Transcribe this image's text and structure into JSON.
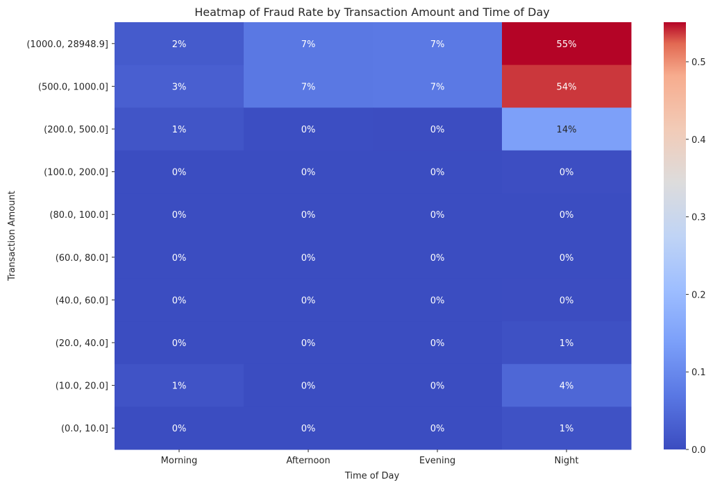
{
  "chart_data": {
    "type": "heatmap",
    "title": "Heatmap of Fraud Rate by Transaction Amount and Time of Day",
    "xlabel": "Time of Day",
    "ylabel": "Transaction Amount",
    "x_categories": [
      "Morning",
      "Afternoon",
      "Evening",
      "Night"
    ],
    "y_categories": [
      "(1000.0, 28948.9]",
      "(500.0, 1000.0]",
      "(200.0, 500.0]",
      "(100.0, 200.0]",
      "(80.0, 100.0]",
      "(60.0, 80.0]",
      "(40.0, 60.0]",
      "(20.0, 40.0]",
      "(10.0, 20.0]",
      "(0.0, 10.0]"
    ],
    "values": [
      [
        0.024,
        0.07,
        0.072,
        0.551
      ],
      [
        0.031,
        0.07,
        0.072,
        0.537
      ],
      [
        0.014,
        0.003,
        0.002,
        0.141
      ],
      [
        0.001,
        0.001,
        0.001,
        0.004
      ],
      [
        0.001,
        0.001,
        0.001,
        0.001
      ],
      [
        0.001,
        0.001,
        0.001,
        0.001
      ],
      [
        0.001,
        0.001,
        0.001,
        0.002
      ],
      [
        0.001,
        0.001,
        0.001,
        0.008
      ],
      [
        0.012,
        0.001,
        0.001,
        0.043
      ],
      [
        0.001,
        0.001,
        0.001,
        0.01
      ]
    ],
    "cell_labels": [
      [
        "2%",
        "7%",
        "7%",
        "55%"
      ],
      [
        "3%",
        "7%",
        "7%",
        "54%"
      ],
      [
        "1%",
        "0%",
        "0%",
        "14%"
      ],
      [
        "0%",
        "0%",
        "0%",
        "0%"
      ],
      [
        "0%",
        "0%",
        "0%",
        "0%"
      ],
      [
        "0%",
        "0%",
        "0%",
        "0%"
      ],
      [
        "0%",
        "0%",
        "0%",
        "0%"
      ],
      [
        "0%",
        "0%",
        "0%",
        "1%"
      ],
      [
        "1%",
        "0%",
        "0%",
        "4%"
      ],
      [
        "0%",
        "0%",
        "0%",
        "1%"
      ]
    ],
    "colormap": "coolwarm",
    "colorbar": {
      "range": [
        0.0,
        0.551
      ],
      "ticks": [
        0.0,
        0.1,
        0.2,
        0.3,
        0.4,
        0.5
      ],
      "tick_labels": [
        "0.0",
        "0.1",
        "0.2",
        "0.3",
        "0.4",
        "0.5"
      ]
    }
  }
}
